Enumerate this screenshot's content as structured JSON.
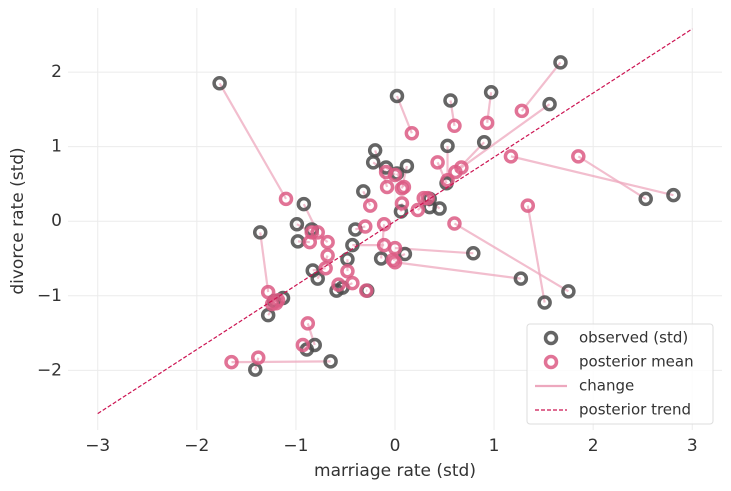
{
  "chart_data": {
    "type": "scatter",
    "xlabel": "marriage rate (std)",
    "ylabel": "divorce rate (std)",
    "xlim": [
      -3.3,
      3.3
    ],
    "ylim": [
      -2.8,
      2.86
    ],
    "xticks": [
      {
        "value": -3,
        "label": "−3"
      },
      {
        "value": -2,
        "label": "−2"
      },
      {
        "value": -1,
        "label": "−1"
      },
      0,
      1,
      2,
      3
    ],
    "yticks": [
      {
        "value": -2,
        "label": "−2"
      },
      {
        "value": -1,
        "label": "−1"
      },
      0,
      1,
      2
    ],
    "grid": true,
    "legend": "lower right",
    "series": [
      {
        "name": "observed (std)",
        "color": "#4a4a4a",
        "style": "marker",
        "x": [
          -1.77,
          0.02,
          0.56,
          0.97,
          1.67,
          1.56,
          2.53,
          2.81,
          0.9,
          0.53,
          -0.2,
          -0.22,
          0.12,
          -0.09,
          0.02,
          -0.32,
          0.35,
          0.52,
          0.35,
          0.06,
          -0.92,
          -1.36,
          -0.99,
          -0.98,
          -0.84,
          -0.4,
          -0.43,
          0.79,
          0.1,
          -0.14,
          1.27,
          1.75,
          1.51,
          -0.48,
          -0.83,
          -0.78,
          -0.53,
          -0.59,
          -0.28,
          -1.28,
          -1.13,
          -1.22,
          -0.81,
          -0.89,
          -0.65,
          -1.41,
          0.45
        ],
        "y": [
          1.85,
          1.68,
          1.62,
          1.73,
          2.13,
          1.57,
          0.3,
          0.35,
          1.06,
          1.01,
          0.95,
          0.79,
          0.74,
          0.72,
          0.64,
          0.4,
          0.3,
          0.51,
          0.19,
          0.13,
          0.23,
          -0.15,
          -0.04,
          -0.27,
          -0.11,
          -0.11,
          -0.32,
          -0.43,
          -0.44,
          -0.5,
          -0.77,
          -0.94,
          -1.09,
          -0.51,
          -0.66,
          -0.77,
          -0.89,
          -0.93,
          -0.93,
          -1.26,
          -1.03,
          -1.07,
          -1.66,
          -1.72,
          -1.88,
          -1.99,
          0.17
        ]
      },
      {
        "name": "posterior mean",
        "color": "#dc5a84",
        "style": "marker",
        "x": [
          -1.1,
          0.17,
          0.6,
          0.93,
          1.28,
          0.67,
          1.85,
          1.17,
          0.61,
          0.53,
          -0.08,
          -0.09,
          0.07,
          0.0,
          0.09,
          -0.25,
          0.23,
          0.43,
          0.29,
          0.07,
          -0.78,
          -1.28,
          -0.84,
          -0.86,
          -0.68,
          -0.3,
          -0.11,
          0.0,
          -0.02,
          -0.11,
          0.0,
          0.6,
          1.34,
          -0.48,
          -0.7,
          -0.68,
          -0.57,
          -0.43,
          -0.29,
          -1.2,
          -1.18,
          -1.24,
          -0.88,
          -0.93,
          -1.65,
          -1.38,
          0.33
        ],
        "y": [
          0.3,
          1.18,
          1.28,
          1.32,
          1.48,
          0.72,
          0.87,
          0.87,
          0.66,
          0.55,
          0.46,
          0.66,
          0.44,
          0.62,
          0.46,
          0.21,
          0.15,
          0.79,
          0.31,
          0.24,
          -0.15,
          -0.95,
          -0.15,
          -0.28,
          -0.28,
          -0.07,
          -0.32,
          -0.36,
          -0.52,
          -0.04,
          -0.55,
          -0.03,
          0.21,
          -0.67,
          -0.63,
          -0.46,
          -0.85,
          -0.83,
          -0.93,
          -1.1,
          -1.06,
          -1.11,
          -1.37,
          -1.66,
          -1.89,
          -1.83,
          0.31
        ]
      },
      {
        "name": "change",
        "color": "#eda8be",
        "style": "line"
      },
      {
        "name": "posterior trend",
        "color": "#cc1452",
        "style": "dashed",
        "x": [
          -3,
          3
        ],
        "y": [
          -2.58,
          2.58
        ]
      }
    ]
  }
}
